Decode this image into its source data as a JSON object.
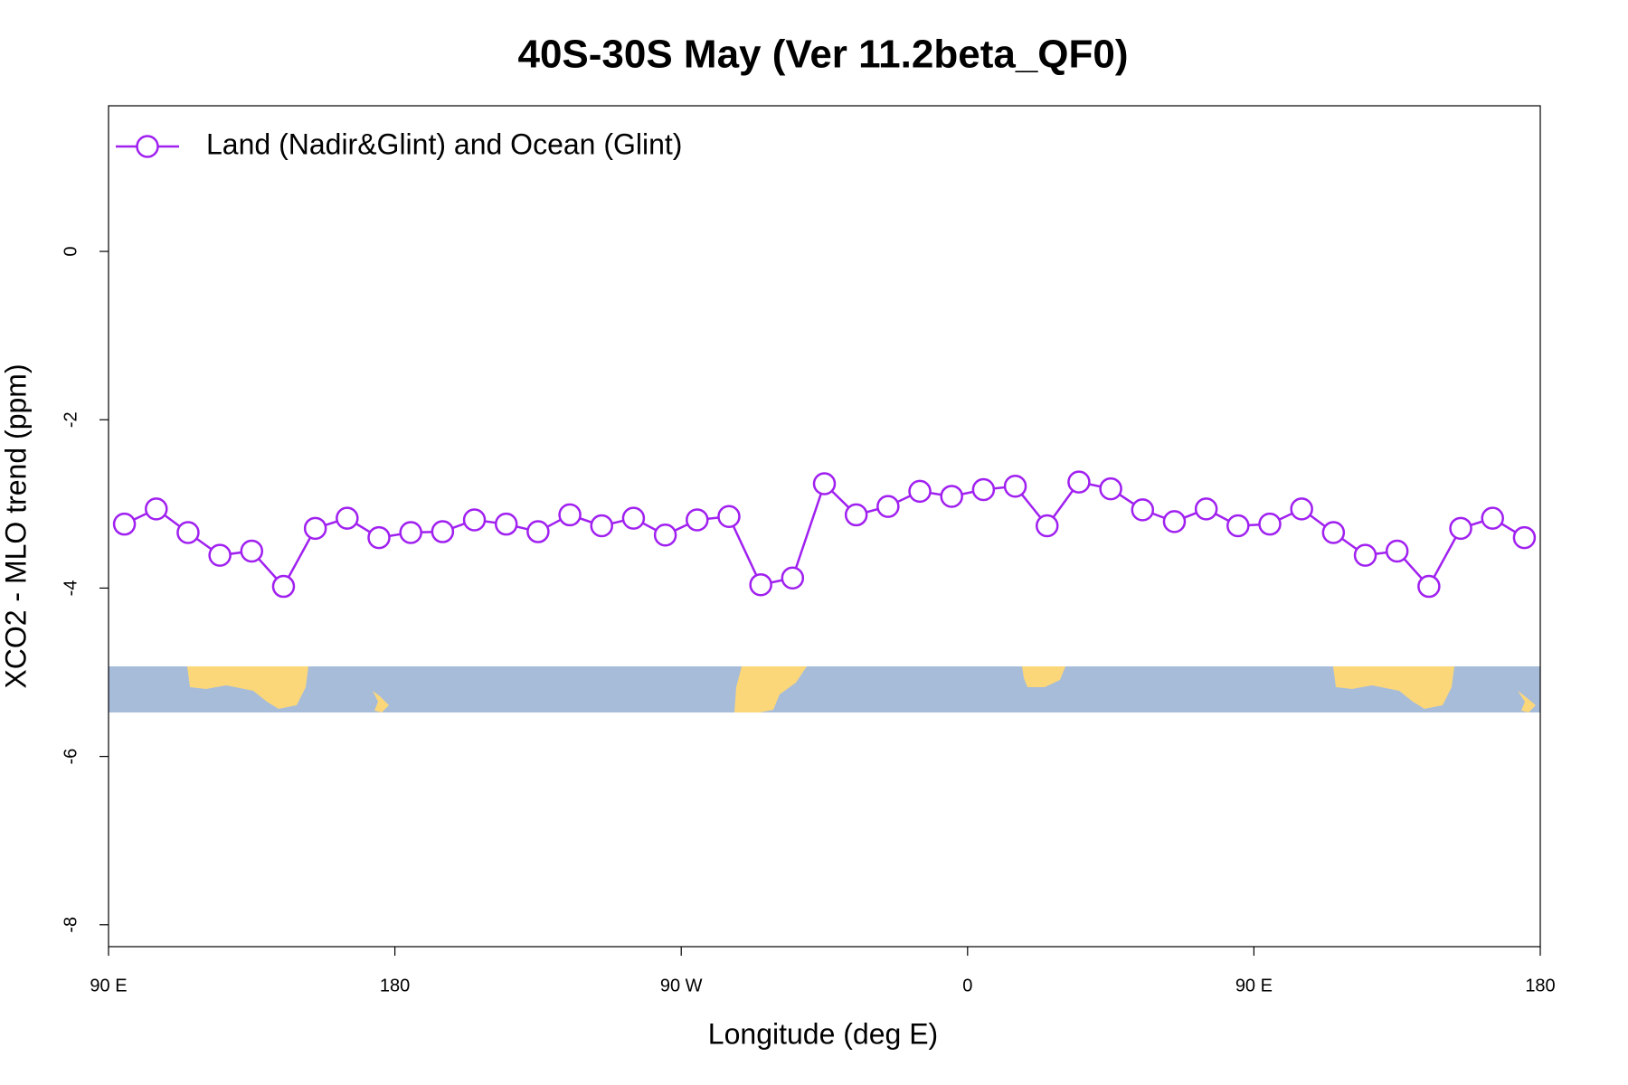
{
  "chart_data": {
    "type": "line",
    "title": "40S-30S May (Ver 11.2beta_QF0)",
    "x_label": "Longitude (deg E)",
    "y_label": "XCO2 - MLO trend (ppm)",
    "x": [
      95,
      105,
      115,
      125,
      135,
      145,
      155,
      165,
      175,
      185,
      195,
      205,
      215,
      225,
      235,
      245,
      255,
      265,
      275,
      285,
      295,
      305,
      315,
      325,
      335,
      345,
      355,
      365,
      375,
      385,
      395,
      405,
      415,
      425,
      435,
      445,
      455,
      465,
      475,
      485,
      495,
      505,
      515,
      525,
      535
    ],
    "series": [
      {
        "name": "Land (Nadir&Glint) and Ocean (Glint)",
        "color": "#a020f0",
        "values": [
          -3.24,
          -3.06,
          -3.34,
          -3.61,
          -3.56,
          -3.98,
          -3.29,
          -3.17,
          -3.4,
          -3.34,
          -3.33,
          -3.19,
          -3.24,
          -3.33,
          -3.13,
          -3.26,
          -3.17,
          -3.37,
          -3.19,
          -3.15,
          -3.96,
          -3.88,
          -2.76,
          -3.13,
          -3.03,
          -2.85,
          -2.91,
          -2.83,
          -2.79,
          -3.26,
          -2.74,
          -2.82,
          -3.07,
          -3.21,
          -3.06,
          -3.26,
          -3.24,
          -3.06,
          -3.34,
          -3.61,
          -3.56,
          -3.98,
          -3.29,
          -3.17,
          -3.4
        ]
      }
    ],
    "xlim": [
      90,
      540
    ],
    "xticks": [
      {
        "value": 90,
        "label": "90 E"
      },
      {
        "value": 180,
        "label": "180"
      },
      {
        "value": 270,
        "label": "90 W"
      },
      {
        "value": 360,
        "label": "0"
      },
      {
        "value": 450,
        "label": "90 E"
      },
      {
        "value": 540,
        "label": "180"
      }
    ],
    "ylim": [
      -8.26,
      1.73
    ],
    "yticks": [
      0,
      -2,
      -4,
      -6,
      -8
    ],
    "legend": "top-left",
    "grid": false
  }
}
